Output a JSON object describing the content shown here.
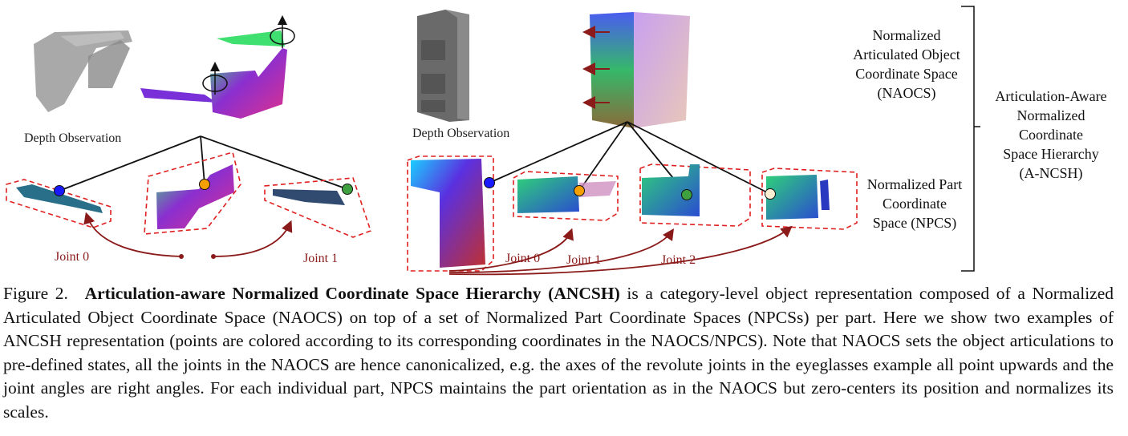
{
  "figure": {
    "depth_label_left": "Depth Observation",
    "depth_label_right": "Depth Observation",
    "joints_left": [
      "Joint 0",
      "Joint 1"
    ],
    "joints_right": [
      "Joint 0",
      "Joint 1",
      "Joint 2"
    ],
    "naocs_label": [
      "Normalized",
      "Articulated Object",
      "Coordinate Space",
      "(NAOCS)"
    ],
    "npcs_label": [
      "Normalized Part",
      "Coordinate",
      "Space (NPCS)"
    ],
    "ancsh_label": [
      "Articulation-Aware",
      "Normalized",
      "Coordinate",
      "Space Hierarchy",
      "(A-NCSH)"
    ],
    "colors": {
      "joint_arrow": "#8b1a1a",
      "dashed_box": "#e02020",
      "node_blue": "#1a1aff",
      "node_orange": "#f5a000",
      "node_green": "#3fa03f",
      "node_cream": "#fbeed2"
    }
  },
  "caption": {
    "figure_number": "Figure 2.",
    "title": "Articulation-aware Normalized Coordinate Space Hierarchy (ANCSH)",
    "text": "is a category-level object representation composed of a Normalized Articulated Object Coordinate Space (NAOCS) on top of a set of Normalized Part Coordinate Spaces (NPCSs) per part.  Here we show two examples of ANCSH representation (points are colored according to its corresponding coordinates in the NAOCS/NPCS). Note that NAOCS sets the object articulations to pre-defined states, all the joints in the NAOCS are hence canonicalized, e.g. the axes of the revolute joints in the eyeglasses example all point upwards and the joint angles are right angles. For each individual part, NPCS maintains the part orientation as in the NAOCS but zero-centers its position and normalizes its scales."
  }
}
